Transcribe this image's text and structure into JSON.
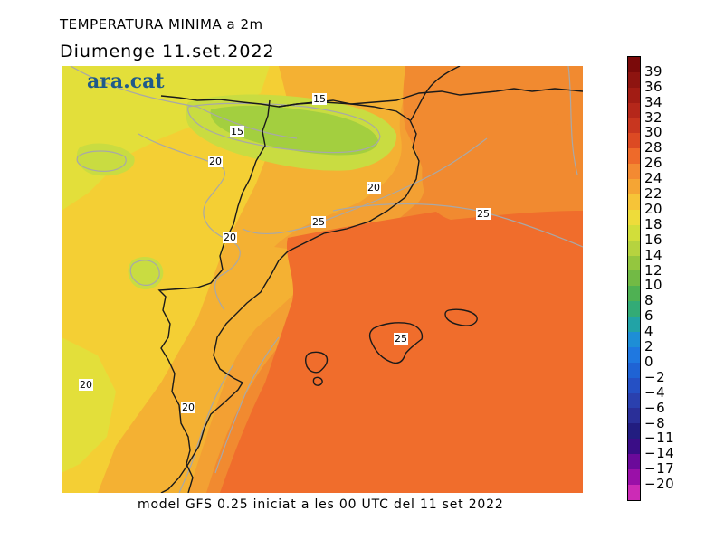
{
  "header": {
    "title": "TEMPERATURA MINIMA a 2m",
    "date": "Diumenge  11.set.2022"
  },
  "brand": {
    "logo_text": "ara.cat",
    "color": "#1f5a8a"
  },
  "footer": {
    "model_text": "model GFS 0.25 iniciat a les 00 UTC del 11 set 2022"
  },
  "map": {
    "field": "minimum 2m temperature",
    "units": "°C",
    "contour_labels": [
      "15",
      "15",
      "20",
      "20",
      "20",
      "20",
      "20",
      "25",
      "25",
      "25"
    ],
    "colors": {
      "temp_12": "#a3cf3f",
      "temp_14": "#c9dc41",
      "temp_16": "#e3df3a",
      "temp_18": "#f4cf34",
      "temp_20": "#f4b133",
      "temp_22": "#f3a033",
      "temp_24": "#f18a30",
      "temp_26": "#f06d2c"
    }
  },
  "colorbar": {
    "labels": [
      "39",
      "36",
      "34",
      "32",
      "30",
      "28",
      "26",
      "24",
      "22",
      "20",
      "18",
      "16",
      "14",
      "12",
      "10",
      "8",
      "6",
      "4",
      "2",
      "0",
      "−2",
      "−4",
      "−6",
      "−8",
      "−11",
      "−14",
      "−17",
      "−20"
    ],
    "colors": [
      "#7a0a0a",
      "#8e1410",
      "#a21c14",
      "#b5271a",
      "#c8361f",
      "#dc4a23",
      "#ee6a2a",
      "#f38a32",
      "#f5a534",
      "#f6c438",
      "#eedc3a",
      "#d2de3a",
      "#b6d33f",
      "#94c63f",
      "#72ba45",
      "#4fb153",
      "#33ab76",
      "#22a3a6",
      "#1e8ed6",
      "#1f78e0",
      "#1f63d4",
      "#2550c4",
      "#2a40ae",
      "#2a2f98",
      "#221d80",
      "#3a0d86",
      "#6b0a9a",
      "#9a10a8",
      "#cc2bb6"
    ]
  }
}
